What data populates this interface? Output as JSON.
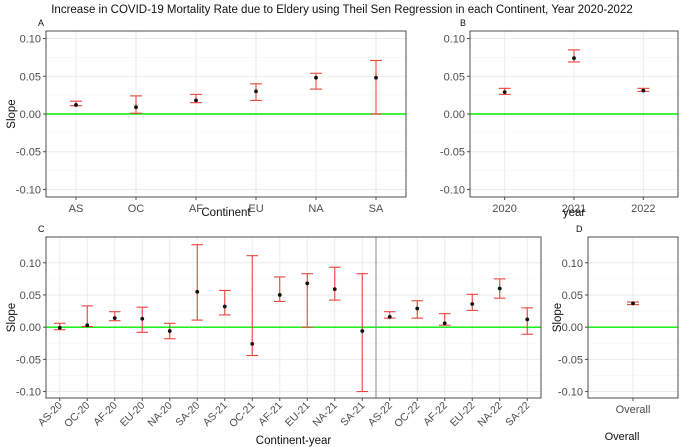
{
  "figure": {
    "title": "Increase in COVID-19 Mortality Rate due to Eldery using Theil Sen Regression in each Continent, Year 2020-2022",
    "footer_label": "Overall"
  },
  "colors": {
    "background": "#ffffff",
    "panel_border": "#4d4d4d",
    "grid": "#ebebeb",
    "zero_line": "#00ee00",
    "error_bar": "#e8453c",
    "point": "#111111",
    "tick_text": "#4d4d4d",
    "text": "#111111"
  },
  "chart_data": [
    {
      "panel": "A",
      "type": "scatter",
      "subtype": "point-with-error-bars",
      "xlabel": "Continent",
      "ylabel": "Slope",
      "ylim": [
        -0.11,
        0.11
      ],
      "yticks": [
        "-0.10",
        "-0.05",
        "0.00",
        "0.05",
        "0.10"
      ],
      "ytick_values": [
        -0.1,
        -0.05,
        0.0,
        0.05,
        0.1
      ],
      "reference_line": 0,
      "grid": true,
      "categories": [
        "AS",
        "OC",
        "AF",
        "EU",
        "NA",
        "SA"
      ],
      "values": [
        0.012,
        0.009,
        0.018,
        0.03,
        0.048,
        0.048
      ],
      "lower": [
        0.011,
        0.001,
        0.015,
        0.018,
        0.033,
        0.0
      ],
      "upper": [
        0.017,
        0.024,
        0.026,
        0.04,
        0.054,
        0.071
      ]
    },
    {
      "panel": "B",
      "type": "scatter",
      "subtype": "point-with-error-bars",
      "xlabel": "year",
      "ylabel": "",
      "ylim": [
        -0.11,
        0.11
      ],
      "yticks": [
        "-0.10",
        "-0.05",
        "0.00",
        "0.05",
        "0.10"
      ],
      "ytick_values": [
        -0.1,
        -0.05,
        0.0,
        0.05,
        0.1
      ],
      "reference_line": 0,
      "grid": true,
      "categories": [
        "2020",
        "2021",
        "2022"
      ],
      "values": [
        0.029,
        0.074,
        0.031
      ],
      "lower": [
        0.026,
        0.069,
        0.03
      ],
      "upper": [
        0.034,
        0.085,
        0.034
      ]
    },
    {
      "panel": "C",
      "type": "scatter",
      "subtype": "point-with-error-bars",
      "xlabel": "Continent-year",
      "ylabel": "Slope",
      "ylim": [
        -0.11,
        0.14
      ],
      "yticks": [
        "-0.10",
        "-0.05",
        "0.00",
        "0.05",
        "0.10"
      ],
      "ytick_values": [
        -0.1,
        -0.05,
        0.0,
        0.05,
        0.1
      ],
      "reference_line": 0,
      "grid": true,
      "categories": [
        "AS-20",
        "OC-20",
        "AF-20",
        "EU-20",
        "NA-20",
        "SA-20",
        "AS-21",
        "OC-21",
        "AF-21",
        "EU-21",
        "NA-21",
        "SA-21",
        "AS-22",
        "OC-22",
        "AF-22",
        "EU-22",
        "NA-22",
        "SA-22"
      ],
      "values": [
        -0.001,
        0.003,
        0.014,
        0.013,
        -0.006,
        0.055,
        0.032,
        -0.026,
        0.05,
        0.068,
        0.059,
        -0.006,
        0.016,
        0.029,
        0.006,
        0.036,
        0.06,
        0.012
      ],
      "lower": [
        -0.004,
        0.001,
        0.01,
        -0.008,
        -0.018,
        0.011,
        0.019,
        -0.044,
        0.04,
        0.0,
        0.042,
        -0.1,
        0.014,
        0.014,
        0.003,
        0.026,
        0.045,
        -0.011
      ],
      "upper": [
        0.006,
        0.033,
        0.024,
        0.031,
        0.006,
        0.128,
        0.057,
        0.111,
        0.078,
        0.083,
        0.093,
        0.083,
        0.024,
        0.041,
        0.021,
        0.051,
        0.075,
        0.03
      ]
    },
    {
      "panel": "D",
      "type": "scatter",
      "subtype": "point-with-error-bars",
      "xlabel": "",
      "ylabel": "Slope",
      "ylim": [
        -0.11,
        0.14
      ],
      "yticks": [
        "-0.10",
        "-0.05",
        "0.00",
        "0.05",
        "0.10"
      ],
      "ytick_values": [
        -0.1,
        -0.05,
        0.0,
        0.05,
        0.1
      ],
      "reference_line": 0,
      "grid": true,
      "categories": [
        "Overall"
      ],
      "values": [
        0.037
      ],
      "lower": [
        0.035
      ],
      "upper": [
        0.039
      ]
    }
  ]
}
